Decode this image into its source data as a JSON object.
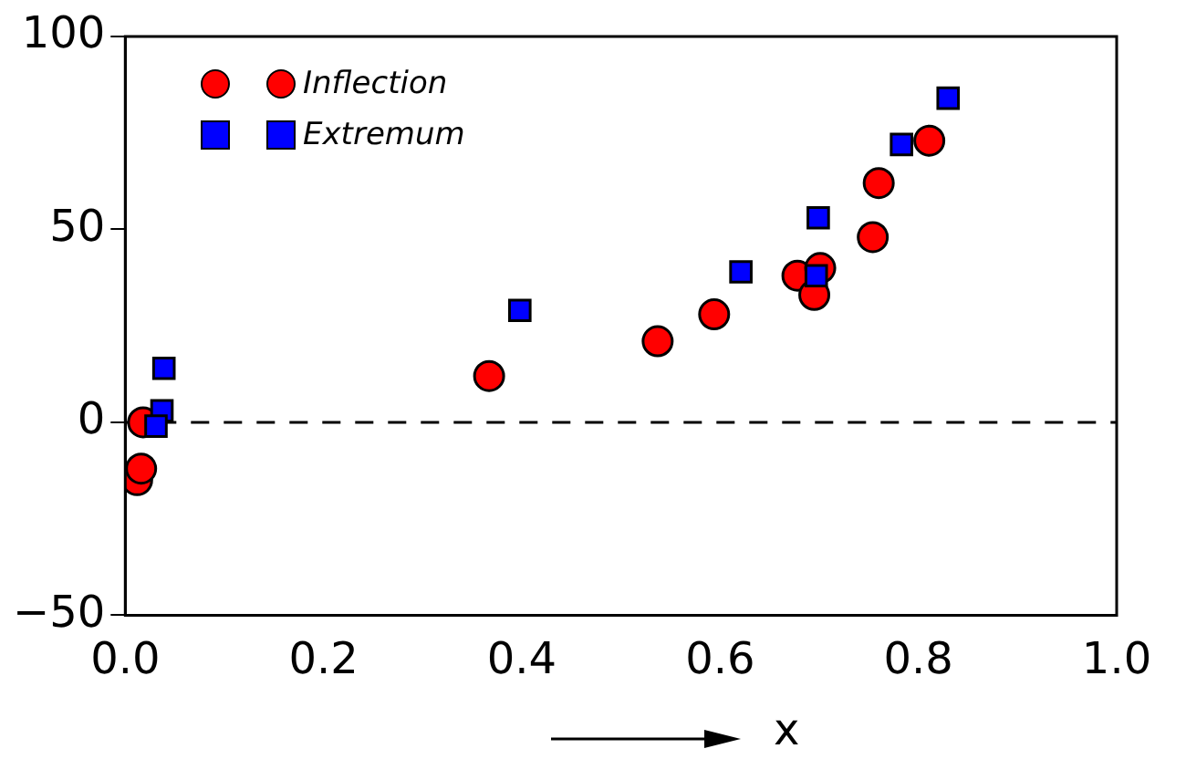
{
  "chart_data": {
    "type": "scatter",
    "xlabel": "x",
    "legend": "top left",
    "grid": false,
    "xlim": [
      0,
      1
    ],
    "xticks": [
      {
        "value": 0,
        "label": "0.0"
      },
      0.2,
      0.4,
      0.6,
      0.8,
      {
        "value": 1,
        "label": "1.0"
      }
    ],
    "ylim": [
      -50,
      100
    ],
    "yticks": [
      {
        "value": -50,
        "label": "−50"
      },
      0,
      50,
      100
    ],
    "ref_lines": [
      {
        "axis": "y",
        "value": 0,
        "color": "#000000",
        "line_style": "dashed"
      }
    ],
    "series": [
      {
        "name": "Inflection",
        "color": "#ff0000",
        "marker": "circle",
        "x": [
          0.012,
          0.016,
          0.018,
          0.367,
          0.537,
          0.594,
          0.678,
          0.701,
          0.695,
          0.754,
          0.76,
          0.811
        ],
        "values": [
          -15,
          -12,
          0,
          12,
          21,
          28,
          38,
          40,
          33,
          48,
          62,
          73
        ]
      },
      {
        "name": "Extremum",
        "color": "#0000ff",
        "marker": "square",
        "x": [
          0.039,
          0.037,
          0.031,
          0.398,
          0.621,
          0.699,
          0.697,
          0.783,
          0.83
        ],
        "values": [
          14,
          3,
          -1,
          29,
          39,
          53,
          38,
          72,
          84
        ]
      }
    ]
  }
}
